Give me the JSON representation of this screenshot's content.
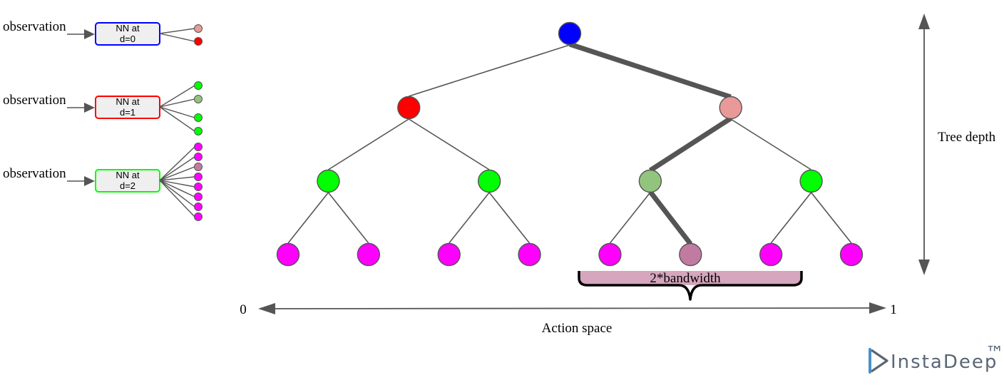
{
  "colors": {
    "blue": "#0000ff",
    "red": "#ff0000",
    "salmon": "#ea9999",
    "green": "#00ff00",
    "sage": "#93c47d",
    "magenta": "#ff00ff",
    "mauve": "#c27ba0",
    "bandwidth_fill": "#d5a6bd",
    "edge": "#555555"
  },
  "networks": [
    {
      "input_label": "observation",
      "label_line1": "NN at",
      "label_line2": "d=0",
      "border_color": "#0000ff",
      "outputs": [
        "#ea9999",
        "#ff0000"
      ]
    },
    {
      "input_label": "observation",
      "label_line1": "NN at",
      "label_line2": "d=1",
      "border_color": "#ff0000",
      "outputs": [
        "#00ff00",
        "#93c47d",
        "#00ff00",
        "#00ff00"
      ]
    },
    {
      "input_label": "observation",
      "label_line1": "NN at",
      "label_line2": "d=2",
      "border_color": "#00ff00",
      "outputs": [
        "#ff00ff",
        "#ff00ff",
        "#c27ba0",
        "#ff00ff",
        "#ff00ff",
        "#ff00ff",
        "#ff00ff",
        "#ff00ff"
      ]
    }
  ],
  "tree": {
    "levels": [
      [
        "#0000ff"
      ],
      [
        "#ff0000",
        "#ea9999"
      ],
      [
        "#00ff00",
        "#00ff00",
        "#93c47d",
        "#00ff00"
      ],
      [
        "#ff00ff",
        "#ff00ff",
        "#ff00ff",
        "#ff00ff",
        "#ff00ff",
        "#c27ba0",
        "#ff00ff",
        "#ff00ff"
      ]
    ],
    "highlighted_path_indices": [
      0,
      1,
      2,
      5
    ]
  },
  "labels": {
    "bandwidth": "2*bandwidth",
    "axis_start": "0",
    "axis_end": "1",
    "action_space": "Action space",
    "tree_depth": "Tree depth"
  },
  "logo": {
    "text": "InstaDeep",
    "trademark": "™"
  }
}
